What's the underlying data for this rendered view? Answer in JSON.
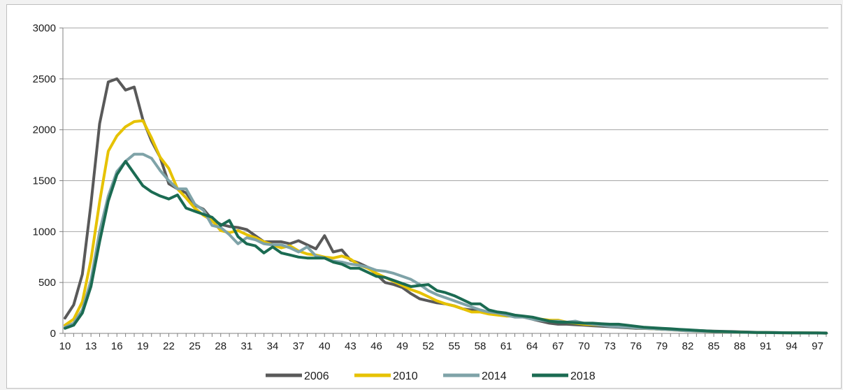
{
  "chart_data": {
    "type": "line",
    "title": "",
    "xlabel": "",
    "ylabel": "",
    "xlim": [
      10,
      98
    ],
    "ylim": [
      0,
      3000
    ],
    "y_ticks": [
      0,
      500,
      1000,
      1500,
      2000,
      2500,
      3000
    ],
    "x_tick_labels": [
      10,
      13,
      16,
      19,
      22,
      25,
      28,
      31,
      34,
      37,
      40,
      43,
      46,
      49,
      52,
      55,
      58,
      61,
      64,
      67,
      70,
      73,
      76,
      79,
      82,
      85,
      88,
      91,
      94,
      97
    ],
    "grid": "horizontal",
    "legend": "bottom",
    "x": [
      10,
      11,
      12,
      13,
      14,
      15,
      16,
      17,
      18,
      19,
      20,
      21,
      22,
      23,
      24,
      25,
      26,
      27,
      28,
      29,
      30,
      31,
      32,
      33,
      34,
      35,
      36,
      37,
      38,
      39,
      40,
      41,
      42,
      43,
      44,
      45,
      46,
      47,
      48,
      49,
      50,
      51,
      52,
      53,
      54,
      55,
      56,
      57,
      58,
      59,
      60,
      61,
      62,
      63,
      64,
      65,
      66,
      67,
      68,
      69,
      70,
      71,
      72,
      73,
      74,
      75,
      76,
      77,
      78,
      79,
      80,
      81,
      82,
      83,
      84,
      85,
      86,
      87,
      88,
      89,
      90,
      91,
      92,
      93,
      94,
      95,
      96,
      97,
      98
    ],
    "series": [
      {
        "name": "2006",
        "color": "#595959",
        "values": [
          150,
          280,
          580,
          1270,
          2060,
          2470,
          2500,
          2390,
          2420,
          2100,
          1890,
          1730,
          1470,
          1420,
          1380,
          1260,
          1220,
          1120,
          1070,
          1050,
          1040,
          1020,
          960,
          900,
          900,
          900,
          880,
          910,
          870,
          830,
          960,
          800,
          820,
          720,
          690,
          650,
          580,
          500,
          480,
          450,
          390,
          340,
          320,
          300,
          290,
          270,
          240,
          230,
          220,
          210,
          200,
          180,
          170,
          160,
          140,
          120,
          100,
          90,
          90,
          85,
          80,
          75,
          70,
          65,
          60,
          55,
          50,
          48,
          45,
          40,
          38,
          35,
          30,
          28,
          25,
          22,
          20,
          18,
          15,
          13,
          10,
          9,
          8,
          7,
          6,
          5,
          5,
          4,
          4
        ]
      },
      {
        "name": "2010",
        "color": "#e6c200",
        "values": [
          80,
          140,
          310,
          720,
          1290,
          1790,
          1940,
          2030,
          2080,
          2090,
          1920,
          1730,
          1620,
          1420,
          1330,
          1230,
          1160,
          1110,
          1010,
          990,
          1010,
          970,
          940,
          900,
          870,
          840,
          860,
          810,
          780,
          770,
          750,
          740,
          760,
          730,
          670,
          640,
          590,
          550,
          510,
          470,
          430,
          400,
          360,
          320,
          290,
          270,
          240,
          210,
          210,
          190,
          180,
          170,
          170,
          160,
          150,
          140,
          130,
          130,
          110,
          100,
          90,
          85,
          80,
          75,
          70,
          60,
          55,
          50,
          45,
          40,
          35,
          30,
          25,
          22,
          20,
          18,
          16,
          14,
          12,
          10,
          9,
          8,
          7,
          6,
          5,
          5,
          4,
          4,
          3
        ]
      },
      {
        "name": "2014",
        "color": "#7fa3a8",
        "values": [
          60,
          100,
          230,
          520,
          1000,
          1350,
          1590,
          1690,
          1760,
          1760,
          1720,
          1600,
          1500,
          1420,
          1420,
          1270,
          1210,
          1060,
          1040,
          970,
          880,
          940,
          920,
          880,
          870,
          870,
          840,
          800,
          850,
          760,
          740,
          710,
          700,
          680,
          670,
          650,
          620,
          610,
          590,
          560,
          530,
          480,
          420,
          380,
          350,
          320,
          290,
          260,
          230,
          210,
          200,
          180,
          160,
          160,
          140,
          130,
          120,
          120,
          110,
          120,
          100,
          90,
          80,
          70,
          65,
          60,
          55,
          50,
          45,
          40,
          35,
          30,
          25,
          22,
          20,
          18,
          16,
          14,
          12,
          10,
          9,
          8,
          7,
          6,
          5,
          5,
          4,
          4,
          3
        ]
      },
      {
        "name": "2018",
        "color": "#1b6b52",
        "values": [
          50,
          80,
          200,
          460,
          900,
          1300,
          1560,
          1690,
          1570,
          1450,
          1390,
          1350,
          1320,
          1360,
          1230,
          1200,
          1170,
          1140,
          1060,
          1110,
          950,
          880,
          860,
          790,
          850,
          790,
          770,
          750,
          740,
          740,
          740,
          700,
          680,
          640,
          640,
          600,
          560,
          550,
          520,
          490,
          460,
          470,
          480,
          420,
          400,
          370,
          330,
          290,
          290,
          230,
          210,
          200,
          180,
          170,
          160,
          140,
          120,
          110,
          110,
          105,
          100,
          100,
          95,
          90,
          90,
          80,
          70,
          60,
          55,
          50,
          45,
          40,
          35,
          30,
          25,
          20,
          18,
          15,
          12,
          10,
          9,
          8,
          7,
          6,
          5,
          5,
          4,
          4,
          3
        ]
      }
    ]
  }
}
